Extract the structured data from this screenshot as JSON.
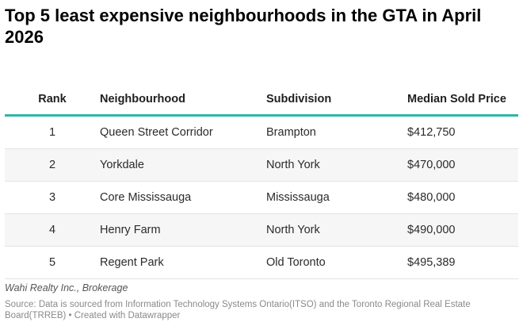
{
  "title": "Top 5 least expensive neighbourhoods in the GTA in April 2026",
  "chart_data": {
    "type": "table",
    "title": "Top 5 least expensive neighbourhoods in the GTA in April 2026",
    "columns": [
      "Rank",
      "Neighbourhood",
      "Subdivision",
      "Median Sold Price"
    ],
    "rows": [
      {
        "rank": "1",
        "neighbourhood": "Queen Street Corridor",
        "subdivision": "Brampton",
        "price": "$412,750"
      },
      {
        "rank": "2",
        "neighbourhood": "Yorkdale",
        "subdivision": "North York",
        "price": "$470,000"
      },
      {
        "rank": "3",
        "neighbourhood": "Core Mississauga",
        "subdivision": "Mississauga",
        "price": "$480,000"
      },
      {
        "rank": "4",
        "neighbourhood": "Henry Farm",
        "subdivision": "North York",
        "price": "$490,000"
      },
      {
        "rank": "5",
        "neighbourhood": "Regent Park",
        "subdivision": "Old Toronto",
        "price": "$495,389"
      }
    ],
    "header_rule_color": "#2fb5a9",
    "striped_row_color": "#f6f6f6"
  },
  "byline": "Wahi Realty Inc., Brokerage",
  "source": "Source: Data is sourced from Information Technology Systems Ontario(ITSO) and the Toronto Regional Real Estate Board(TRREB) • Created with Datawrapper"
}
